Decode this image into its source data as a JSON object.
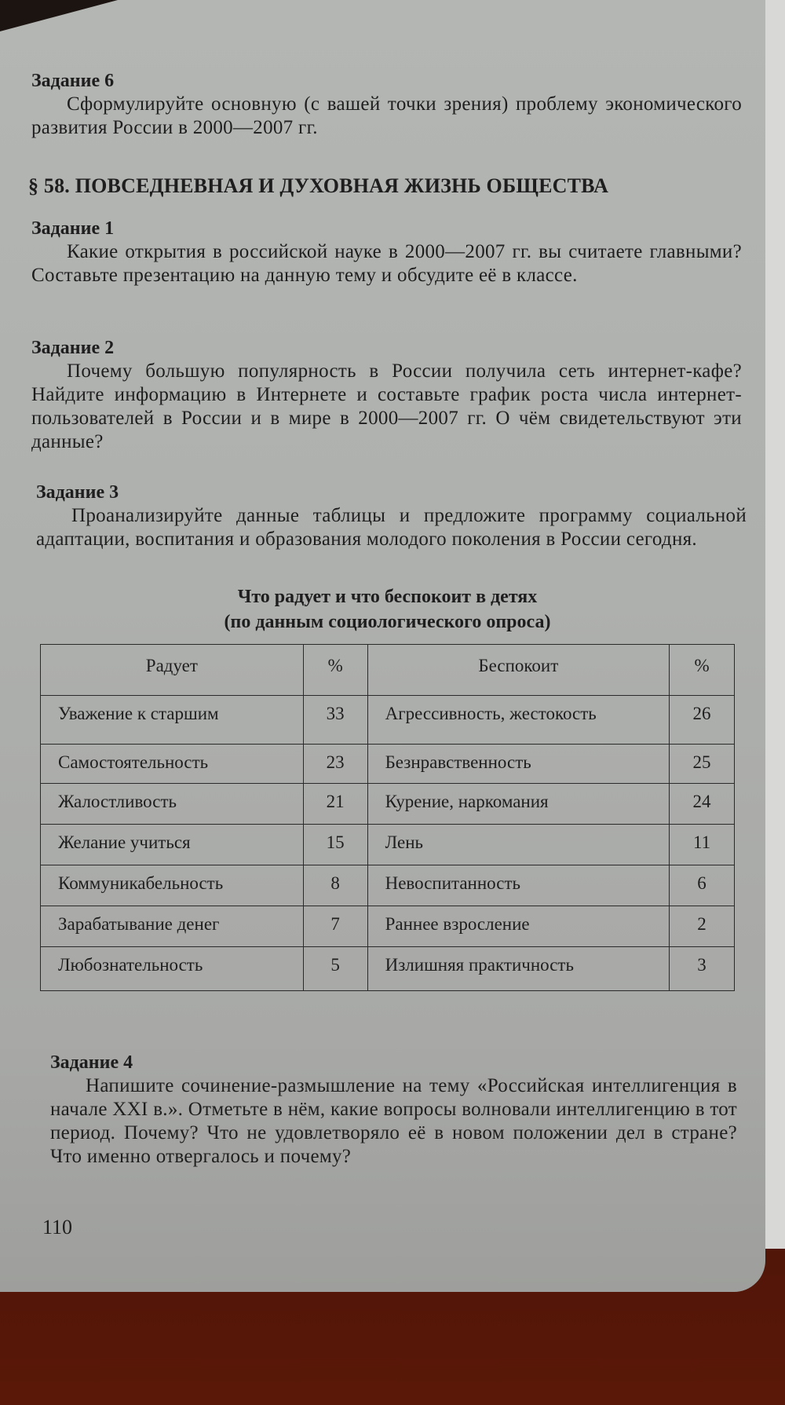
{
  "task6": {
    "heading": "Задание 6",
    "text": "Сформулируйте основную (с вашей точки зрения) проблему экономического развития России в 2000—2007 гг."
  },
  "section": {
    "title": "§ 58. ПОВСЕДНЕВНАЯ И ДУХОВНАЯ ЖИЗНЬ ОБЩЕСТВА"
  },
  "task1": {
    "heading": "Задание 1",
    "text": "Какие открытия в российской науке в 2000—2007 гг. вы считаете главными? Составьте презентацию на данную тему и обсудите её в классе."
  },
  "task2": {
    "heading": "Задание 2",
    "text": "Почему большую популярность в России получила сеть интернет-кафе? Найдите информацию в Интернете и составьте график роста числа интернет-пользователей в России и в мире в 2000—2007 гг. О чём свидетельствуют эти данные?"
  },
  "task3": {
    "heading": "Задание 3",
    "text": "Проанализируйте данные таблицы и предложите программу социальной адаптации, воспитания и образования молодого поколения в России сегодня."
  },
  "table": {
    "title": "Что радует и что беспокоит в детях",
    "subtitle": "(по данным социологического опроса)",
    "headers": [
      "Радует",
      "%",
      "Беспокоит",
      "%"
    ],
    "rows": [
      [
        "Уважение к старшим",
        "33",
        "Агрессивность, жестокость",
        "26"
      ],
      [
        "Самостоятельность",
        "23",
        "Безнравственность",
        "25"
      ],
      [
        "Жалостливость",
        "21",
        "Курение, наркомания",
        "24"
      ],
      [
        "Желание учиться",
        "15",
        "Лень",
        "11"
      ],
      [
        "Коммуникабельность",
        "8",
        "Невоспитанность",
        "6"
      ],
      [
        "Зарабатывание денег",
        "7",
        "Раннее взросление",
        "2"
      ],
      [
        "Любознательность",
        "5",
        "Излишняя практичность",
        "3"
      ]
    ]
  },
  "task4": {
    "heading": "Задание 4",
    "text": "Напишите сочинение-размышление на тему «Российская интеллигенция в начале XXI в.». Отметьте в нём, какие вопросы волновали интеллигенцию в тот период. Почему? Что не удовлетворяло её в новом положении дел в стране? Что именно отвергалось и почему?"
  },
  "page_number": "110"
}
